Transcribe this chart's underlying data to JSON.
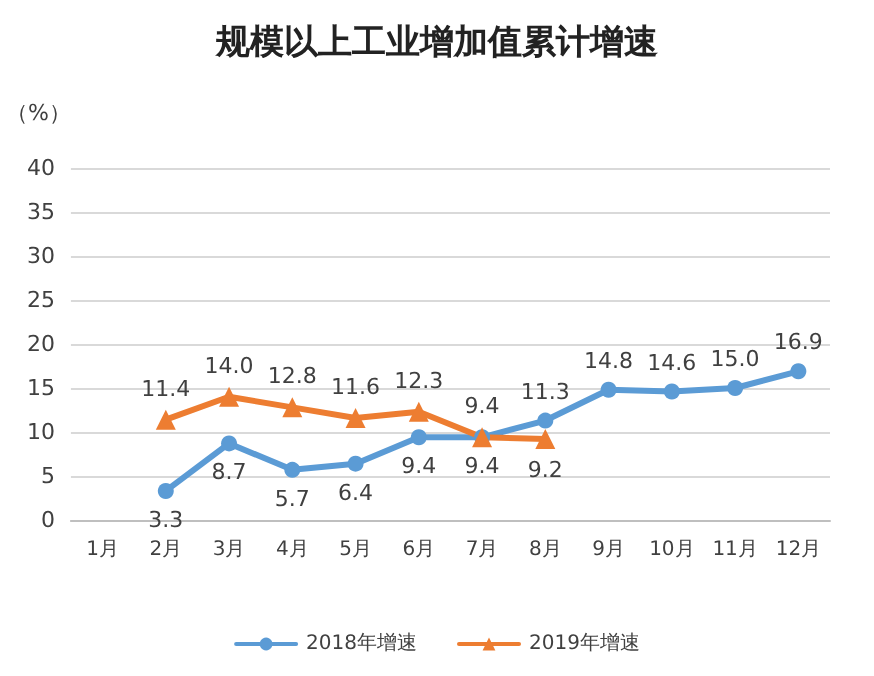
{
  "chart_data": {
    "type": "line",
    "title": "规模以上工业增加值累计增速",
    "ylabel": "（%）",
    "categories": [
      "1月",
      "2月",
      "3月",
      "4月",
      "5月",
      "6月",
      "7月",
      "8月",
      "9月",
      "10月",
      "11月",
      "12月"
    ],
    "series": [
      {
        "name": "2018年增速",
        "color": "#5b9bd5",
        "values": [
          null,
          3.3,
          8.7,
          5.7,
          6.4,
          9.4,
          9.4,
          11.3,
          14.8,
          14.6,
          15.0,
          16.9
        ],
        "value_labels": [
          null,
          "3.3",
          "8.7",
          "5.7",
          "6.4",
          "9.4",
          "9.4",
          "11.3",
          "14.8",
          "14.6",
          "15.0",
          "16.9"
        ],
        "marker": "circle"
      },
      {
        "name": "2019年增速",
        "color": "#ed7d31",
        "values": [
          null,
          11.4,
          14.0,
          12.8,
          11.6,
          12.3,
          9.4,
          9.2,
          null,
          null,
          null,
          null
        ],
        "value_labels": [
          null,
          "11.4",
          "14.0",
          "12.8",
          "11.6",
          "12.3",
          "9.4",
          "9.2",
          null,
          null,
          null,
          null
        ],
        "marker": "triangle"
      }
    ],
    "ylim": [
      0,
      40
    ],
    "yticks": [
      0,
      5,
      10,
      15,
      20,
      25,
      30,
      35,
      40
    ],
    "grid": "y",
    "legend": "bottom",
    "line_style": "solid"
  }
}
